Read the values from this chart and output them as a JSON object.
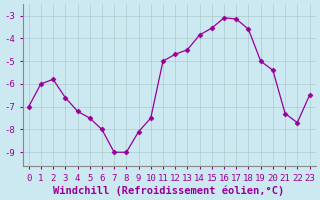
{
  "x": [
    0,
    1,
    2,
    3,
    4,
    5,
    6,
    7,
    8,
    9,
    10,
    11,
    12,
    13,
    14,
    15,
    16,
    17,
    18,
    19,
    20,
    21,
    22,
    23
  ],
  "y": [
    -7.0,
    -6.0,
    -5.8,
    -6.6,
    -7.2,
    -7.5,
    -8.0,
    -9.0,
    -9.0,
    -8.1,
    -7.5,
    -5.0,
    -4.7,
    -4.5,
    -3.85,
    -3.55,
    -3.1,
    -3.15,
    -3.6,
    -5.0,
    -5.4,
    -7.3,
    -7.7,
    -6.5
  ],
  "line_color": "#990099",
  "marker": "D",
  "marker_size": 2.5,
  "bg_color": "#cce8f0",
  "grid_color": "#aacccc",
  "ylim": [
    -9.6,
    -2.5
  ],
  "xlim": [
    -0.5,
    23.5
  ],
  "yticks": [
    -9,
    -8,
    -7,
    -6,
    -5,
    -4,
    -3
  ],
  "xticks": [
    0,
    1,
    2,
    3,
    4,
    5,
    6,
    7,
    8,
    9,
    10,
    11,
    12,
    13,
    14,
    15,
    16,
    17,
    18,
    19,
    20,
    21,
    22,
    23
  ],
  "tick_color": "#990099",
  "label_color": "#990099",
  "font_size": 6.5,
  "xlabel": "Windchill (Refroidissement éolien,°C)",
  "xlabel_fontsize": 7.5
}
